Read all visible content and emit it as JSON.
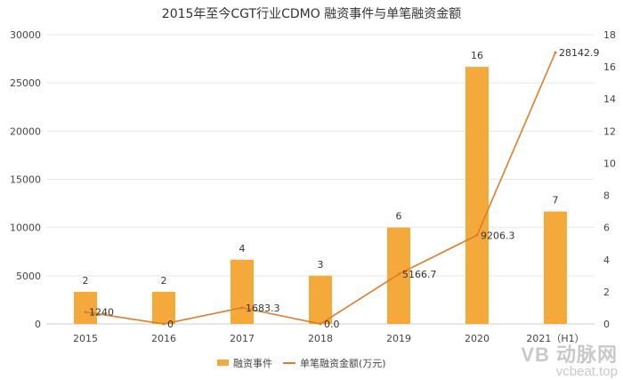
{
  "chart_data": {
    "type": "bar+line",
    "title": "2015年至今CGT行业CDMO 融资事件与单笔融资金额",
    "categories": [
      "2015",
      "2016",
      "2017",
      "2018",
      "2019",
      "2020",
      "2021（H1）"
    ],
    "series": [
      {
        "name": "融资事件",
        "type": "bar",
        "axis": "right",
        "values": [
          2,
          2,
          4,
          3,
          6,
          16,
          7
        ],
        "labels": [
          "2",
          "2",
          "4",
          "3",
          "6",
          "16",
          "7"
        ],
        "color": "#F5A93A"
      },
      {
        "name": "单笔融资金额(万元)",
        "type": "line",
        "axis": "left",
        "values": [
          1240,
          0,
          1683.3,
          0.0,
          5166.7,
          9206.3,
          28142.9
        ],
        "labels": [
          "1240",
          "0",
          "1683.3",
          "0.0",
          "5166.7",
          "9206.3",
          "28142.9"
        ],
        "color": "#E07C28"
      }
    ],
    "left_axis": {
      "range": [
        0,
        30000
      ],
      "ticks": [
        "0",
        "5000",
        "10000",
        "15000",
        "20000",
        "25000",
        "30000"
      ]
    },
    "right_axis": {
      "range": [
        0,
        18
      ],
      "ticks": [
        "0",
        "2",
        "4",
        "6",
        "8",
        "10",
        "12",
        "14",
        "16",
        "18"
      ]
    },
    "grid": true,
    "legend_position": "bottom"
  },
  "watermark": {
    "top": "VB 动脉网",
    "bottom": "vcbeat.top"
  }
}
